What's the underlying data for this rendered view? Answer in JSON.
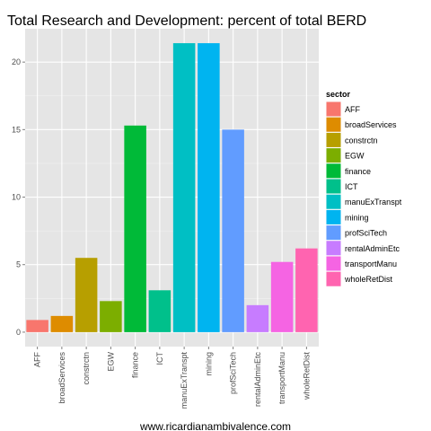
{
  "chart_data": {
    "type": "bar",
    "title": "Total Research and Development: percent of total BERD",
    "xlabel": "",
    "ylabel": "",
    "categories": [
      "AFF",
      "broadServices",
      "constrctn",
      "EGW",
      "finance",
      "ICT",
      "manuExTranspt",
      "mining",
      "profSciTech",
      "rentalAdminEtc",
      "transportManu",
      "wholeRetDist"
    ],
    "values": [
      0.9,
      1.2,
      5.5,
      2.3,
      15.3,
      3.1,
      21.4,
      21.4,
      15.0,
      2.0,
      5.2,
      6.2
    ],
    "colors": [
      "#F8766D",
      "#DE8C00",
      "#B79F00",
      "#7CAE00",
      "#00BA38",
      "#00C08B",
      "#00BFC4",
      "#00B4F0",
      "#619CFF",
      "#C77CFF",
      "#F564E3",
      "#FF64B0"
    ],
    "ylim": [
      -1.07,
      22.47
    ],
    "yticks": [
      0,
      5,
      10,
      15,
      20
    ],
    "grid": true,
    "legend": {
      "title": "sector",
      "position": "right"
    }
  },
  "caption": "www.ricardianambivalence.com"
}
